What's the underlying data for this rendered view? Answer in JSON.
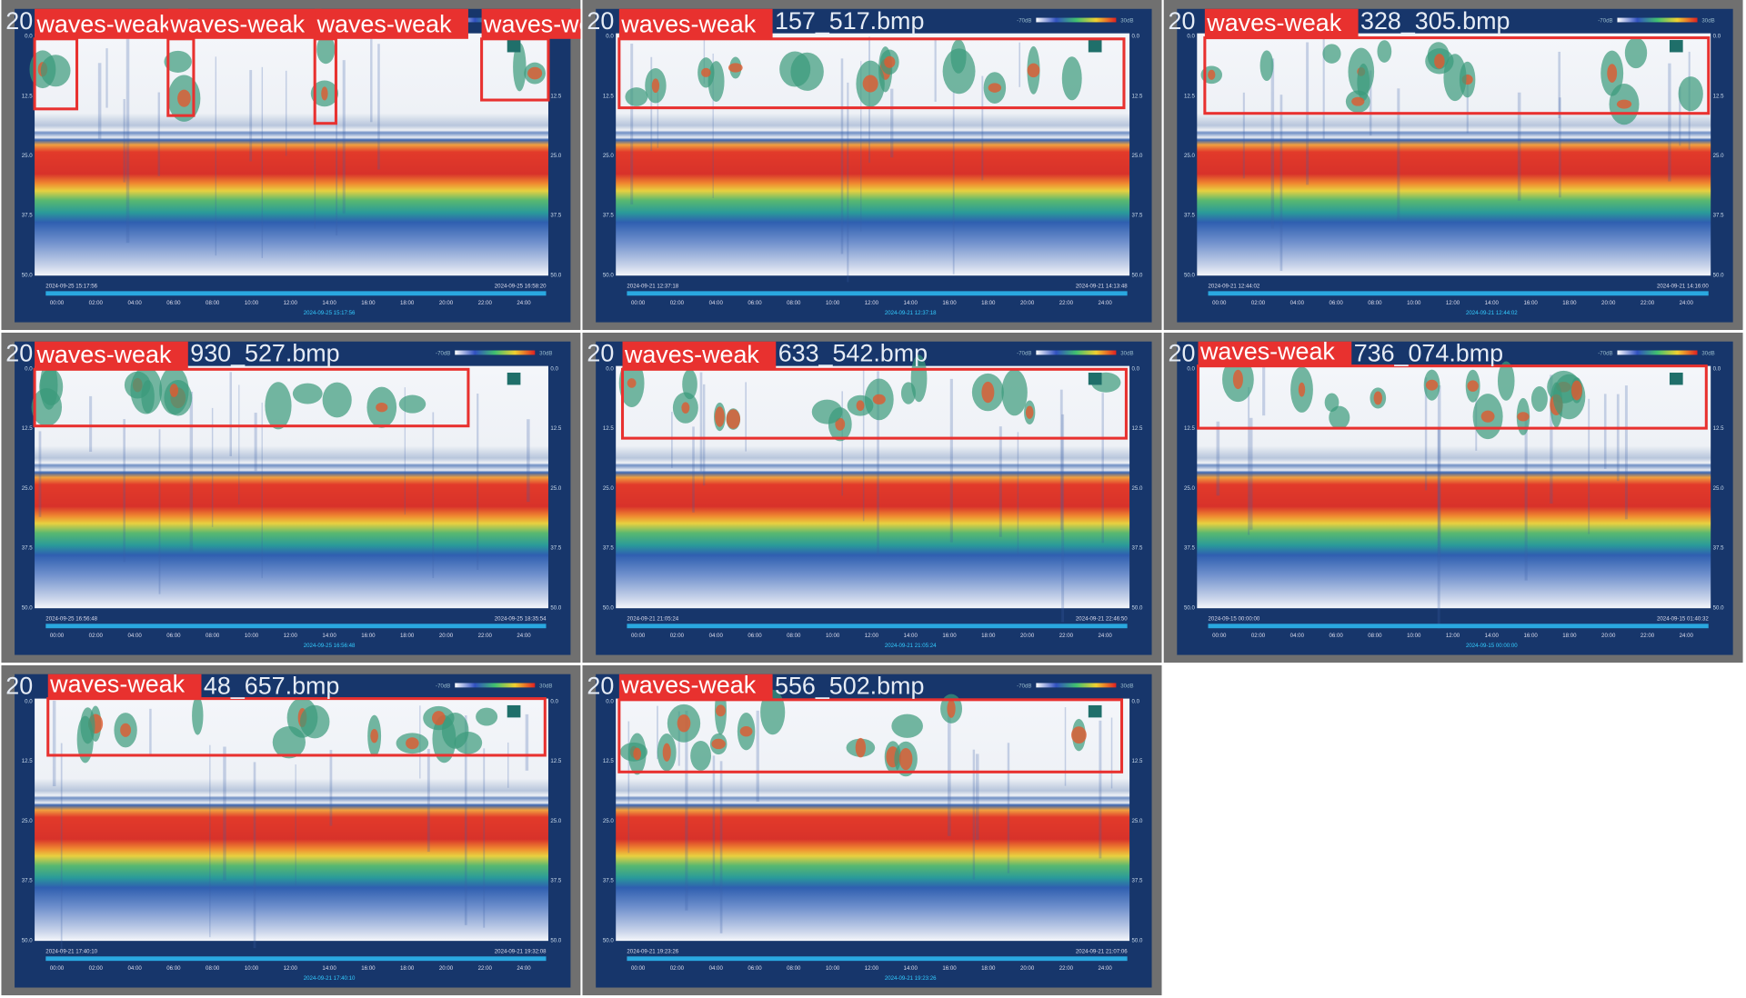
{
  "label": "waves-weak",
  "depth_ticks": [
    "0.0",
    "12.5",
    "25.0",
    "37.5",
    "50.0"
  ],
  "hour_ticks": [
    "00:00",
    "02:00",
    "04:00",
    "06:00",
    "08:00",
    "10:00",
    "12:00",
    "14:00",
    "16:00",
    "18:00",
    "20:00",
    "22:00",
    "24:00"
  ],
  "legend": {
    "min": "-70dB",
    "max": "30dB"
  },
  "tiles": [
    {
      "title_head": "20",
      "start": "2024-09-25 15:17:56",
      "end": "2024-09-25 16:58:20",
      "cursor": "2024-09-25 15:17:56"
    },
    {
      "title_head": "20",
      "title_tail": "157_517.bmp",
      "start": "2024-09-21 12:37:18",
      "end": "2024-09-21 14:13:48",
      "cursor": "2024-09-21 12:37:18"
    },
    {
      "title_head": "20",
      "title_tail": "328_305.bmp",
      "start": "2024-09-21 12:44:02",
      "end": "2024-09-21 14:16:00",
      "cursor": "2024-09-21 12:44:02"
    },
    {
      "title_head": "20",
      "title_tail": "930_527.bmp",
      "start": "2024-09-25 16:56:48",
      "end": "2024-09-25 18:35:54",
      "cursor": "2024-09-25 16:56:48"
    },
    {
      "title_head": "20",
      "title_tail": "633_542.bmp",
      "start": "2024-09-21 21:05:24",
      "end": "2024-09-21 22:46:50",
      "cursor": "2024-09-21 21:05:24"
    },
    {
      "title_head": "20",
      "title_tail": "736_074.bmp",
      "start": "2024-09-15 00:00:00",
      "end": "2024-09-15 01:40:32",
      "cursor": "2024-09-15 00:00:00"
    },
    {
      "title_head": "20",
      "title_tail": "48_657.bmp",
      "start": "2024-09-21 17:40:10",
      "end": "2024-09-21 19:32:08",
      "cursor": "2024-09-21 17:40:10"
    },
    {
      "title_head": "20",
      "title_tail": "556_502.bmp",
      "start": "2024-09-21 19:23:26",
      "end": "2024-09-21 21:07:06",
      "cursor": "2024-09-21 19:23:26"
    }
  ]
}
